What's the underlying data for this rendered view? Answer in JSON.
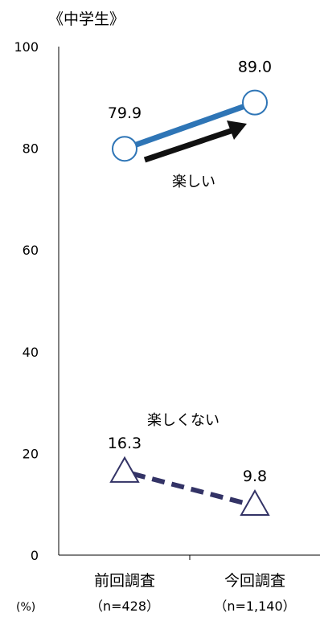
{
  "chart_data": {
    "type": "line",
    "title": "《中学生》",
    "unit_label": "(%)",
    "ylim": [
      0,
      100
    ],
    "yticks": [
      0,
      20,
      40,
      60,
      80,
      100
    ],
    "grid": false,
    "categories": [
      {
        "label": "前回調査",
        "sample": "（n=428）"
      },
      {
        "label": "今回調査",
        "sample": "（n=1,140）"
      }
    ],
    "series": [
      {
        "name": "楽しい",
        "values": [
          79.9,
          89.0
        ],
        "labels": [
          "79.9",
          "89.0"
        ],
        "color": "#2E75B6",
        "marker": "circle",
        "line_style": "solid"
      },
      {
        "name": "楽しくない",
        "values": [
          16.3,
          9.8
        ],
        "labels": [
          "16.3",
          "9.8"
        ],
        "color": "#333366",
        "marker": "triangle",
        "line_style": "dashed"
      }
    ],
    "annotation_arrow_color": "#111111"
  }
}
